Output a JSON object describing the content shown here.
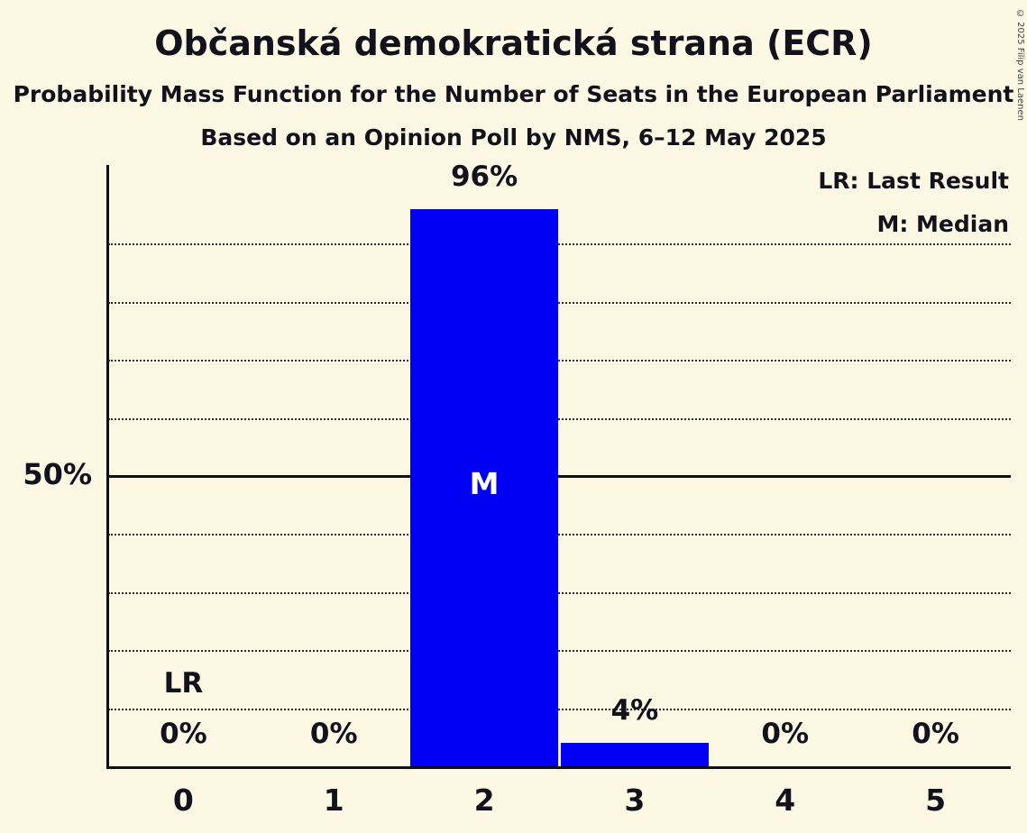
{
  "title": "Občanská demokratická strana (ECR)",
  "subtitle1": "Probability Mass Function for the Number of Seats in the European Parliament",
  "subtitle2": "Based on an Opinion Poll by NMS, 6–12 May 2025",
  "copyright": "© 2025 Filip van Laenen",
  "legend": {
    "last_result": "LR: Last Result",
    "median": "M: Median"
  },
  "colors": {
    "background": "#FDF8E4",
    "bar": "#0000F5",
    "text": "#12121C"
  },
  "chart_data": {
    "type": "bar",
    "categories": [
      "0",
      "1",
      "2",
      "3",
      "4",
      "5"
    ],
    "values": [
      0,
      0,
      96,
      4,
      0,
      0
    ],
    "bar_labels": [
      "0%",
      "0%",
      "96%",
      "4%",
      "0%",
      "0%"
    ],
    "title": "Občanská demokratická strana (ECR)",
    "xlabel": "",
    "ylabel": "",
    "ylim": [
      0,
      100
    ],
    "y_axis_tick_label": "50%",
    "solid_gridline_value": 50,
    "dotted_gridline_values": [
      10,
      20,
      30,
      40,
      60,
      70,
      80,
      90
    ],
    "legend_position": "top-right",
    "annotations": {
      "last_result_index": 0,
      "last_result_label": "LR",
      "median_index": 2,
      "median_label": "M"
    }
  }
}
